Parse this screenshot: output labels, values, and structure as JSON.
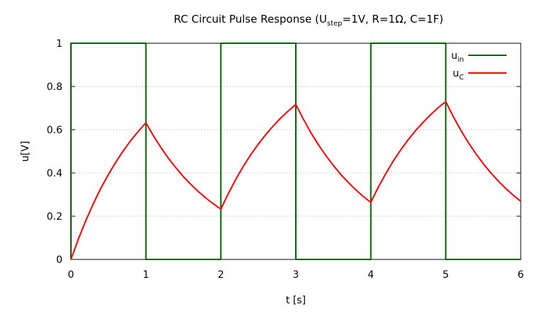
{
  "chart_data": {
    "type": "line",
    "title": {
      "main": "RC Circuit Pulse Response (U",
      "main_sub": "step",
      "rest": "=1V, R=1Ω, C=1F)"
    },
    "xlabel": "t [s]",
    "ylabel": "u[V]",
    "xlim": [
      0,
      6
    ],
    "ylim": [
      0,
      1
    ],
    "xticks": [
      "0",
      "1",
      "2",
      "3",
      "4",
      "5",
      "6"
    ],
    "yticks": [
      "0",
      "0.2",
      "0.4",
      "0.6",
      "0.8",
      "1"
    ],
    "grid": true,
    "legend_position": "top-right",
    "series": [
      {
        "name": "u",
        "name_sub": "in",
        "color": "#006400",
        "x": [
          0,
          0,
          1,
          1,
          2,
          2,
          3,
          3,
          4,
          4,
          5,
          5,
          6
        ],
        "y": [
          0,
          1,
          1,
          0,
          0,
          1,
          1,
          0,
          0,
          1,
          1,
          0,
          0
        ]
      },
      {
        "name": "u",
        "name_sub": "C",
        "color": "#ff0000",
        "x": [
          0,
          0.1,
          0.2,
          0.3,
          0.4,
          0.5,
          0.6,
          0.7,
          0.8,
          0.9,
          1.0,
          1.1,
          1.2,
          1.3,
          1.4,
          1.5,
          1.6,
          1.7,
          1.8,
          1.9,
          2.0,
          2.1,
          2.2,
          2.3,
          2.4,
          2.5,
          2.6,
          2.7,
          2.8,
          2.9,
          3.0,
          3.1,
          3.2,
          3.3,
          3.4,
          3.5,
          3.6,
          3.7,
          3.8,
          3.9,
          4.0,
          4.1,
          4.2,
          4.3,
          4.4,
          4.5,
          4.6,
          4.7,
          4.8,
          4.9,
          5.0,
          5.1,
          5.2,
          5.3,
          5.4,
          5.5,
          5.6,
          5.7,
          5.8,
          5.9,
          6.0
        ],
        "y": [
          0,
          0.095,
          0.181,
          0.259,
          0.33,
          0.393,
          0.451,
          0.503,
          0.551,
          0.593,
          0.632,
          0.572,
          0.518,
          0.468,
          0.424,
          0.383,
          0.347,
          0.314,
          0.284,
          0.257,
          0.233,
          0.305,
          0.371,
          0.431,
          0.485,
          0.534,
          0.578,
          0.618,
          0.655,
          0.687,
          0.717,
          0.649,
          0.587,
          0.531,
          0.481,
          0.435,
          0.393,
          0.356,
          0.322,
          0.291,
          0.264,
          0.334,
          0.397,
          0.455,
          0.507,
          0.554,
          0.597,
          0.635,
          0.67,
          0.702,
          0.73,
          0.661,
          0.598,
          0.541,
          0.49,
          0.443,
          0.401,
          0.363,
          0.328,
          0.297,
          0.269
        ]
      }
    ]
  }
}
